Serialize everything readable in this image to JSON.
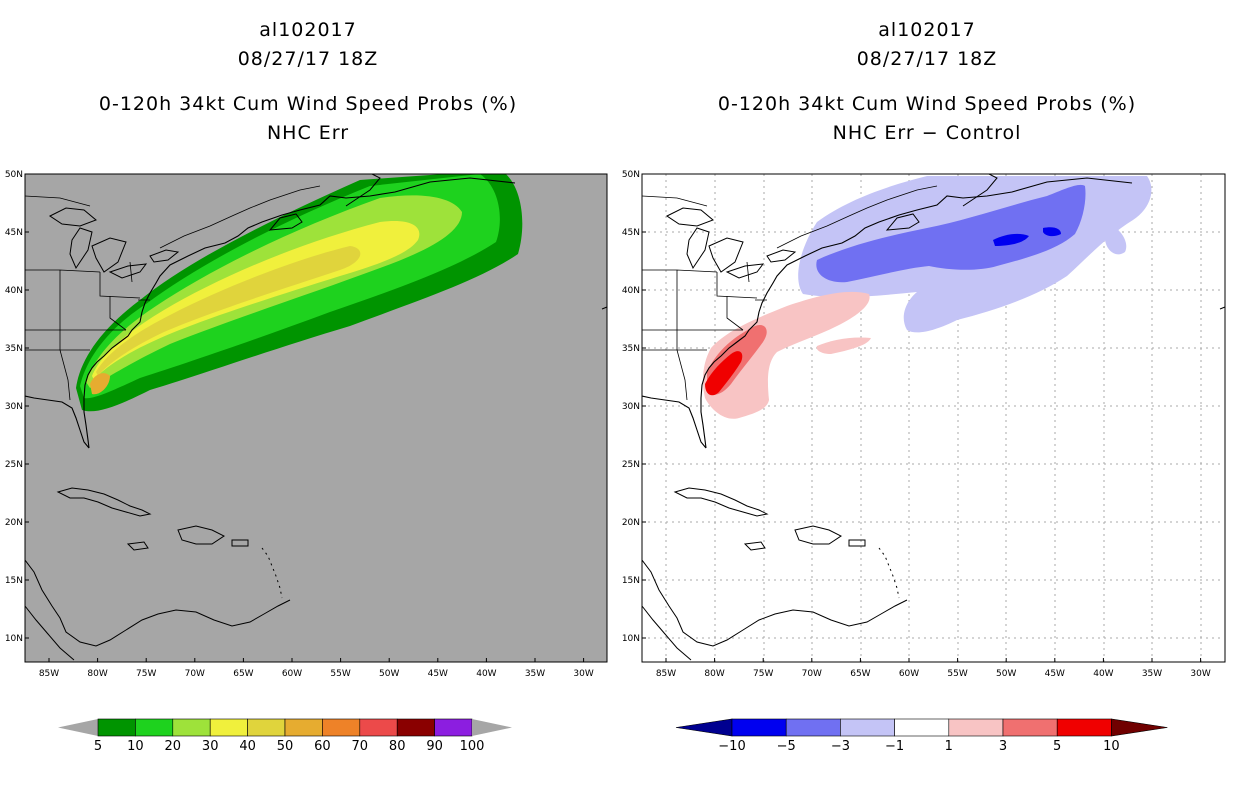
{
  "left_panel": {
    "storm_id": "al102017",
    "datetime": "08/27/17 18Z",
    "product": "0-120h 34kt Cum Wind Speed Probs (%)",
    "subtitle": "NHC Err"
  },
  "right_panel": {
    "storm_id": "al102017",
    "datetime": "08/27/17 18Z",
    "product": "0-120h 34kt Cum Wind Speed Probs (%)",
    "subtitle": "NHC Err − Control"
  },
  "map_axes": {
    "lat_labels": [
      "50N",
      "45N",
      "40N",
      "35N",
      "30N",
      "25N",
      "20N",
      "15N",
      "10N"
    ],
    "lon_labels": [
      "85W",
      "80W",
      "75W",
      "70W",
      "65W",
      "60W",
      "55W",
      "50W",
      "45W",
      "40W",
      "35W",
      "30W"
    ]
  },
  "legend_left": {
    "labels": [
      "5",
      "10",
      "20",
      "30",
      "40",
      "50",
      "60",
      "70",
      "80",
      "90",
      "100"
    ],
    "colors": [
      "#009400",
      "#1ed21e",
      "#9ee23a",
      "#f0f03c",
      "#e0d43c",
      "#e6ac30",
      "#ee8228",
      "#ec4a4a",
      "#8a0000",
      "#8c1ee0"
    ],
    "end_color": "#a6a6a6"
  },
  "legend_right": {
    "labels": [
      "−10",
      "−5",
      "−3",
      "−1",
      "1",
      "3",
      "5",
      "10"
    ],
    "colors": [
      "#0000f0",
      "#7070f2",
      "#c4c4f6",
      "#ffffff",
      "#f8c4c4",
      "#f07070",
      "#f00000"
    ],
    "low_color": "#000090",
    "high_color": "#700000"
  },
  "colors": {
    "ocean_left": "#a6a6a6",
    "coast": "#000000"
  }
}
